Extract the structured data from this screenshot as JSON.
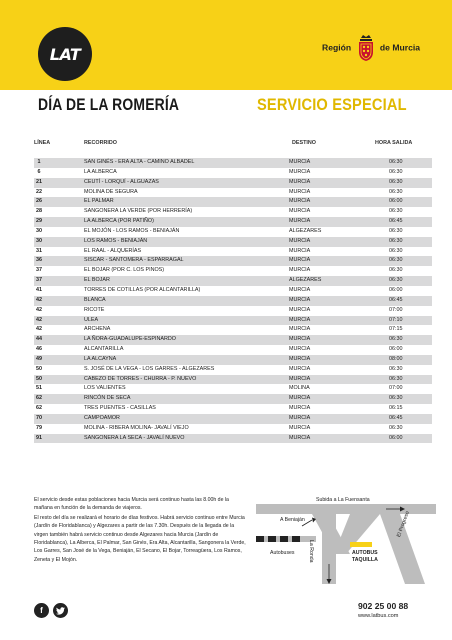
{
  "header": {
    "logo": "LAT",
    "region_left": "Región",
    "region_right": "de Murcia"
  },
  "titles": {
    "left": "DÍA DE LA ROMERÍA",
    "right": "SERVICIO ESPECIAL"
  },
  "table": {
    "headers": {
      "linea": "LÍNEA",
      "recorrido": "RECORRIDO",
      "destino": "DESTINO",
      "hora": "HORA SALIDA"
    },
    "rows": [
      {
        "linea": "1",
        "recorrido": "SAN GINÉS - ERA ALTA - CAMINO ALBADEL",
        "destino": "MURCIA",
        "hora": "06:30"
      },
      {
        "linea": "6",
        "recorrido": "LA ALBERCA",
        "destino": "MURCIA",
        "hora": "06:30"
      },
      {
        "linea": "21",
        "recorrido": "CEUTÍ - LORQUÍ - ALGUAZAS",
        "destino": "MURCIA",
        "hora": "06:30"
      },
      {
        "linea": "22",
        "recorrido": "MOLINA DE SEGURA",
        "destino": "MURCIA",
        "hora": "06:30"
      },
      {
        "linea": "26",
        "recorrido": "EL PALMAR",
        "destino": "MURCIA",
        "hora": "06:00"
      },
      {
        "linea": "28",
        "recorrido": "SANGONERA LA VERDE (POR HERRERÍA)",
        "destino": "MURCIA",
        "hora": "06:30"
      },
      {
        "linea": "29",
        "recorrido": "LA ALBERCA (POR PATIÑO)",
        "destino": "MURCIA",
        "hora": "06:45"
      },
      {
        "linea": "30",
        "recorrido": "EL MOJÓN - LOS RAMOS - BENIAJÁN",
        "destino": "ALGEZARES",
        "hora": "06:30"
      },
      {
        "linea": "30",
        "recorrido": "LOS RAMOS - BENIAJÁN",
        "destino": "MURCIA",
        "hora": "06:30"
      },
      {
        "linea": "31",
        "recorrido": "EL RAAL - ALQUERÍAS",
        "destino": "MURCIA",
        "hora": "06:30"
      },
      {
        "linea": "36",
        "recorrido": "SISCAR - SANTOMERA - ESPARRAGAL",
        "destino": "MURCIA",
        "hora": "06:30"
      },
      {
        "linea": "37",
        "recorrido": "EL BOJAR (POR C. LOS PINOS)",
        "destino": "MURCIA",
        "hora": "06:30"
      },
      {
        "linea": "37",
        "recorrido": "EL BOJAR",
        "destino": "ALGEZARES",
        "hora": "06:30"
      },
      {
        "linea": "41",
        "recorrido": "TORRES DE COTILLAS (POR ALCANTARILLA)",
        "destino": "MURCIA",
        "hora": "06:00"
      },
      {
        "linea": "42",
        "recorrido": "BLANCA",
        "destino": "MURCIA",
        "hora": "06:45"
      },
      {
        "linea": "42",
        "recorrido": "RICOTE",
        "destino": "MURCIA",
        "hora": "07:00"
      },
      {
        "linea": "42",
        "recorrido": "ULEA",
        "destino": "MURCIA",
        "hora": "07:10"
      },
      {
        "linea": "42",
        "recorrido": "ARCHENA",
        "destino": "MURCIA",
        "hora": "07:15"
      },
      {
        "linea": "44",
        "recorrido": "LA ÑORA-GUADALUPE-ESPINARDO",
        "destino": "MURCIA",
        "hora": "06:30"
      },
      {
        "linea": "46",
        "recorrido": "ALCANTARILLA",
        "destino": "MURCIA",
        "hora": "06:00"
      },
      {
        "linea": "49",
        "recorrido": "LA ALCAYNA",
        "destino": "MURCIA",
        "hora": "08:00"
      },
      {
        "linea": "50",
        "recorrido": "S. JOSÉ DE LA VEGA - LOS GARRES - ALGEZARES",
        "destino": "MURCIA",
        "hora": "06:30"
      },
      {
        "linea": "50",
        "recorrido": "CABEZO DE TORRES - CHURRA - P. NUEVO",
        "destino": "MURCIA",
        "hora": "06:30"
      },
      {
        "linea": "51",
        "recorrido": "LOS VALIENTES",
        "destino": "MOLINA",
        "hora": "07:00"
      },
      {
        "linea": "62",
        "recorrido": "RINCÓN DE SECA",
        "destino": "MURCIA",
        "hora": "06:30"
      },
      {
        "linea": "62",
        "recorrido": "TRES PUENTES - CASILLAS",
        "destino": "MURCIA",
        "hora": "06:15"
      },
      {
        "linea": "70",
        "recorrido": "CAMPOAMOR",
        "destino": "MURCIA",
        "hora": "06:45"
      },
      {
        "linea": "79",
        "recorrido": "MOLINA - RIBERA MOLINA- JAVALÍ VIEJO",
        "destino": "MURCIA",
        "hora": "06:30"
      },
      {
        "linea": "91",
        "recorrido": "SANGONERA LA SECA - JAVALÍ NUEVO",
        "destino": "MURCIA",
        "hora": "06:00"
      }
    ]
  },
  "info": {
    "p1": "El servicio desde estas poblaciones hacia Murcia será continuo hasta las 8.00h de la mañana en función de la demanda de viajeros.",
    "p2": "El resto del día se realizará el horario de días festivos. Habrá servicio continuo entre Murcia (Jardín de Floridablanca) y Algezares a partir de las 7.30h. Después de la llegada de la virgen también habrá servicio continuo desde Algezares hacia Murcia (Jardín de Floridablanca), La Alberca, El Palmar, San Ginés, Era Alta, Alcantarilla, Sangonera la Verde, Los Garres, San José de la Vega, Beniaján, El Secano, El Bojar, Torreagüera, Los Ramos, Zeneta y El Mojón."
  },
  "map": {
    "subida": "Subida a La Fuensanta",
    "beniajan": "A Beniaján",
    "autobuses": "Autobuses",
    "la_ronda": "La Ronda",
    "el_progreso": "El Progreso",
    "taquilla_1": "AUTOBUS",
    "taquilla_2": "TAQUILLA"
  },
  "contact": {
    "phone": "902 25 00 88",
    "web": "www.latbus.com"
  },
  "colors": {
    "band": "#f7d117",
    "accent_title": "#e0b800",
    "row_shade": "#d9d9da"
  }
}
